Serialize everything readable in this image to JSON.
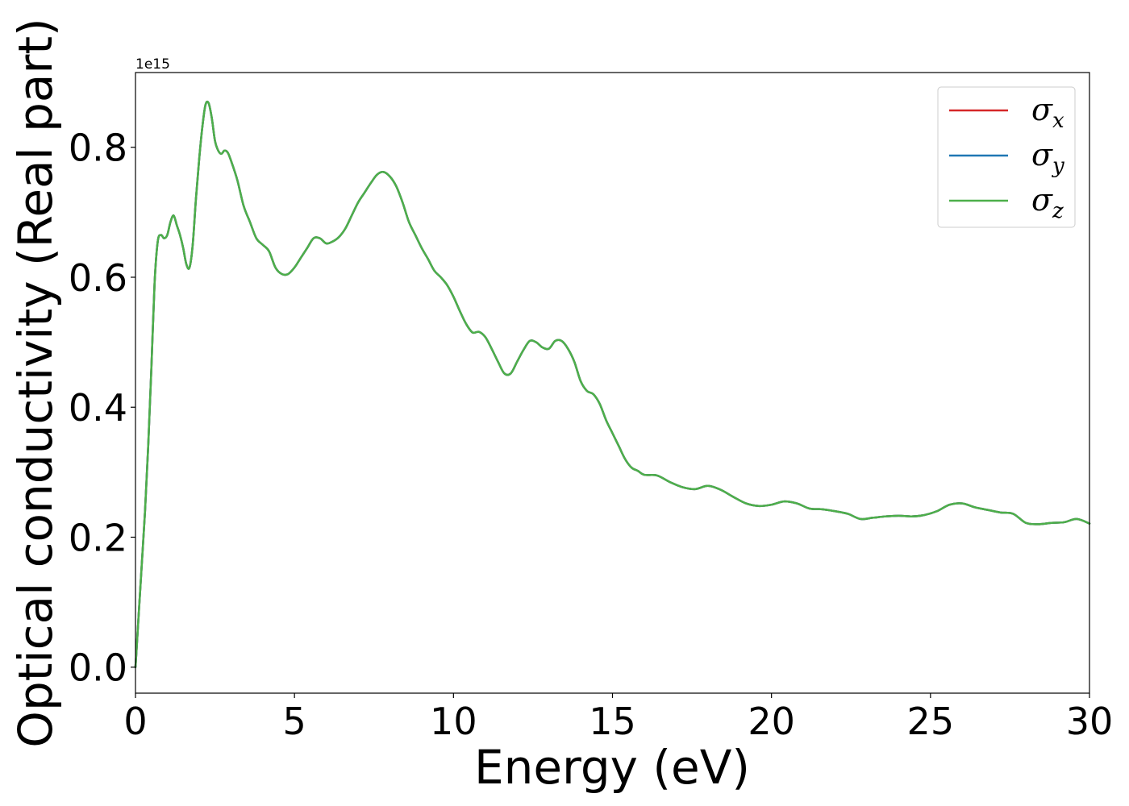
{
  "chart_data": {
    "type": "line",
    "xlabel": "Energy (eV)",
    "ylabel": "Optical conductivity (Real part)",
    "offset_label": "1e15",
    "xlim": [
      0,
      30
    ],
    "ylim": [
      -0.04,
      0.915
    ],
    "y_scale_factor": 1000000000000000.0,
    "xticks": [
      0,
      5,
      10,
      15,
      20,
      25,
      30
    ],
    "xtick_labels": [
      "0",
      "5",
      "10",
      "15",
      "20",
      "25",
      "30"
    ],
    "yticks": [
      0.0,
      0.2,
      0.4,
      0.6,
      0.8
    ],
    "ytick_labels": [
      "0.0",
      "0.2",
      "0.4",
      "0.6",
      "0.8"
    ],
    "grid": false,
    "legend_position": "top-right",
    "x": [
      0,
      0.1,
      0.2,
      0.3,
      0.4,
      0.5,
      0.6,
      0.7,
      0.8,
      0.9,
      1.0,
      1.1,
      1.2,
      1.3,
      1.4,
      1.5,
      1.6,
      1.7,
      1.8,
      1.9,
      2.0,
      2.1,
      2.2,
      2.3,
      2.4,
      2.5,
      2.6,
      2.7,
      2.8,
      2.9,
      3.0,
      3.2,
      3.4,
      3.6,
      3.8,
      4.0,
      4.2,
      4.4,
      4.6,
      4.8,
      5.0,
      5.2,
      5.4,
      5.6,
      5.8,
      6.0,
      6.2,
      6.4,
      6.6,
      6.8,
      7.0,
      7.2,
      7.4,
      7.6,
      7.8,
      8.0,
      8.2,
      8.4,
      8.6,
      8.8,
      9.0,
      9.2,
      9.4,
      9.6,
      9.8,
      10.0,
      10.2,
      10.4,
      10.6,
      10.8,
      11.0,
      11.2,
      11.4,
      11.6,
      11.8,
      12.0,
      12.2,
      12.4,
      12.6,
      12.8,
      13.0,
      13.2,
      13.4,
      13.6,
      13.8,
      14.0,
      14.2,
      14.4,
      14.6,
      14.8,
      15.0,
      15.2,
      15.4,
      15.6,
      15.8,
      16.0,
      16.4,
      16.8,
      17.2,
      17.6,
      18.0,
      18.4,
      18.8,
      19.2,
      19.6,
      20.0,
      20.4,
      20.8,
      21.2,
      21.6,
      22.0,
      22.4,
      22.8,
      23.2,
      23.6,
      24.0,
      24.4,
      24.8,
      25.2,
      25.6,
      26.0,
      26.4,
      26.8,
      27.2,
      27.6,
      28.0,
      28.4,
      28.8,
      29.2,
      29.6,
      30.0
    ],
    "series": [
      {
        "name": "σx",
        "label_base": "σ",
        "label_sub": "x",
        "color": "#d62728",
        "values": [
          0.0,
          0.08,
          0.16,
          0.24,
          0.34,
          0.46,
          0.59,
          0.655,
          0.665,
          0.66,
          0.665,
          0.685,
          0.695,
          0.68,
          0.665,
          0.645,
          0.62,
          0.615,
          0.65,
          0.72,
          0.78,
          0.83,
          0.865,
          0.868,
          0.845,
          0.81,
          0.795,
          0.79,
          0.795,
          0.792,
          0.78,
          0.75,
          0.71,
          0.685,
          0.66,
          0.65,
          0.64,
          0.615,
          0.605,
          0.605,
          0.615,
          0.63,
          0.645,
          0.66,
          0.66,
          0.652,
          0.655,
          0.662,
          0.675,
          0.695,
          0.715,
          0.73,
          0.745,
          0.758,
          0.762,
          0.755,
          0.74,
          0.715,
          0.685,
          0.665,
          0.645,
          0.628,
          0.61,
          0.6,
          0.588,
          0.57,
          0.548,
          0.528,
          0.515,
          0.516,
          0.508,
          0.49,
          0.47,
          0.452,
          0.452,
          0.47,
          0.488,
          0.502,
          0.5,
          0.492,
          0.49,
          0.502,
          0.502,
          0.49,
          0.47,
          0.44,
          0.425,
          0.42,
          0.405,
          0.38,
          0.36,
          0.34,
          0.32,
          0.307,
          0.302,
          0.296,
          0.295,
          0.285,
          0.277,
          0.274,
          0.279,
          0.273,
          0.262,
          0.252,
          0.248,
          0.25,
          0.255,
          0.252,
          0.244,
          0.243,
          0.24,
          0.236,
          0.228,
          0.23,
          0.232,
          0.233,
          0.232,
          0.234,
          0.24,
          0.25,
          0.252,
          0.246,
          0.242,
          0.238,
          0.236,
          0.222,
          0.22,
          0.222,
          0.223,
          0.228,
          0.221
        ]
      },
      {
        "name": "σy",
        "label_base": "σ",
        "label_sub": "y",
        "color": "#1f77b4",
        "values": [
          0.0,
          0.08,
          0.16,
          0.24,
          0.34,
          0.46,
          0.59,
          0.655,
          0.665,
          0.66,
          0.665,
          0.685,
          0.695,
          0.68,
          0.665,
          0.645,
          0.62,
          0.615,
          0.65,
          0.72,
          0.78,
          0.83,
          0.865,
          0.868,
          0.845,
          0.81,
          0.795,
          0.79,
          0.795,
          0.792,
          0.78,
          0.75,
          0.71,
          0.685,
          0.66,
          0.65,
          0.64,
          0.615,
          0.605,
          0.605,
          0.615,
          0.63,
          0.645,
          0.66,
          0.66,
          0.652,
          0.655,
          0.662,
          0.675,
          0.695,
          0.715,
          0.73,
          0.745,
          0.758,
          0.762,
          0.755,
          0.74,
          0.715,
          0.685,
          0.665,
          0.645,
          0.628,
          0.61,
          0.6,
          0.588,
          0.57,
          0.548,
          0.528,
          0.515,
          0.516,
          0.508,
          0.49,
          0.47,
          0.452,
          0.452,
          0.47,
          0.488,
          0.502,
          0.5,
          0.492,
          0.49,
          0.502,
          0.502,
          0.49,
          0.47,
          0.44,
          0.425,
          0.42,
          0.405,
          0.38,
          0.36,
          0.34,
          0.32,
          0.307,
          0.302,
          0.296,
          0.295,
          0.285,
          0.277,
          0.274,
          0.279,
          0.273,
          0.262,
          0.252,
          0.248,
          0.25,
          0.255,
          0.252,
          0.244,
          0.243,
          0.24,
          0.236,
          0.228,
          0.23,
          0.232,
          0.233,
          0.232,
          0.234,
          0.24,
          0.25,
          0.252,
          0.246,
          0.242,
          0.238,
          0.236,
          0.222,
          0.22,
          0.222,
          0.223,
          0.228,
          0.221
        ]
      },
      {
        "name": "σz",
        "label_base": "σ",
        "label_sub": "z",
        "color": "#4daf4a",
        "values": [
          0.0,
          0.08,
          0.16,
          0.24,
          0.34,
          0.46,
          0.59,
          0.655,
          0.665,
          0.66,
          0.665,
          0.685,
          0.695,
          0.68,
          0.665,
          0.645,
          0.62,
          0.615,
          0.65,
          0.72,
          0.78,
          0.83,
          0.865,
          0.868,
          0.845,
          0.81,
          0.795,
          0.79,
          0.795,
          0.792,
          0.78,
          0.75,
          0.71,
          0.685,
          0.66,
          0.65,
          0.64,
          0.615,
          0.605,
          0.605,
          0.615,
          0.63,
          0.645,
          0.66,
          0.66,
          0.652,
          0.655,
          0.662,
          0.675,
          0.695,
          0.715,
          0.73,
          0.745,
          0.758,
          0.762,
          0.755,
          0.74,
          0.715,
          0.685,
          0.665,
          0.645,
          0.628,
          0.61,
          0.6,
          0.588,
          0.57,
          0.548,
          0.528,
          0.515,
          0.516,
          0.508,
          0.49,
          0.47,
          0.452,
          0.452,
          0.47,
          0.488,
          0.502,
          0.5,
          0.492,
          0.49,
          0.502,
          0.502,
          0.49,
          0.47,
          0.44,
          0.425,
          0.42,
          0.405,
          0.38,
          0.36,
          0.34,
          0.32,
          0.307,
          0.302,
          0.296,
          0.295,
          0.285,
          0.277,
          0.274,
          0.279,
          0.273,
          0.262,
          0.252,
          0.248,
          0.25,
          0.255,
          0.252,
          0.244,
          0.243,
          0.24,
          0.236,
          0.228,
          0.23,
          0.232,
          0.233,
          0.232,
          0.234,
          0.24,
          0.25,
          0.252,
          0.246,
          0.242,
          0.238,
          0.236,
          0.222,
          0.22,
          0.222,
          0.223,
          0.228,
          0.221
        ]
      }
    ]
  }
}
